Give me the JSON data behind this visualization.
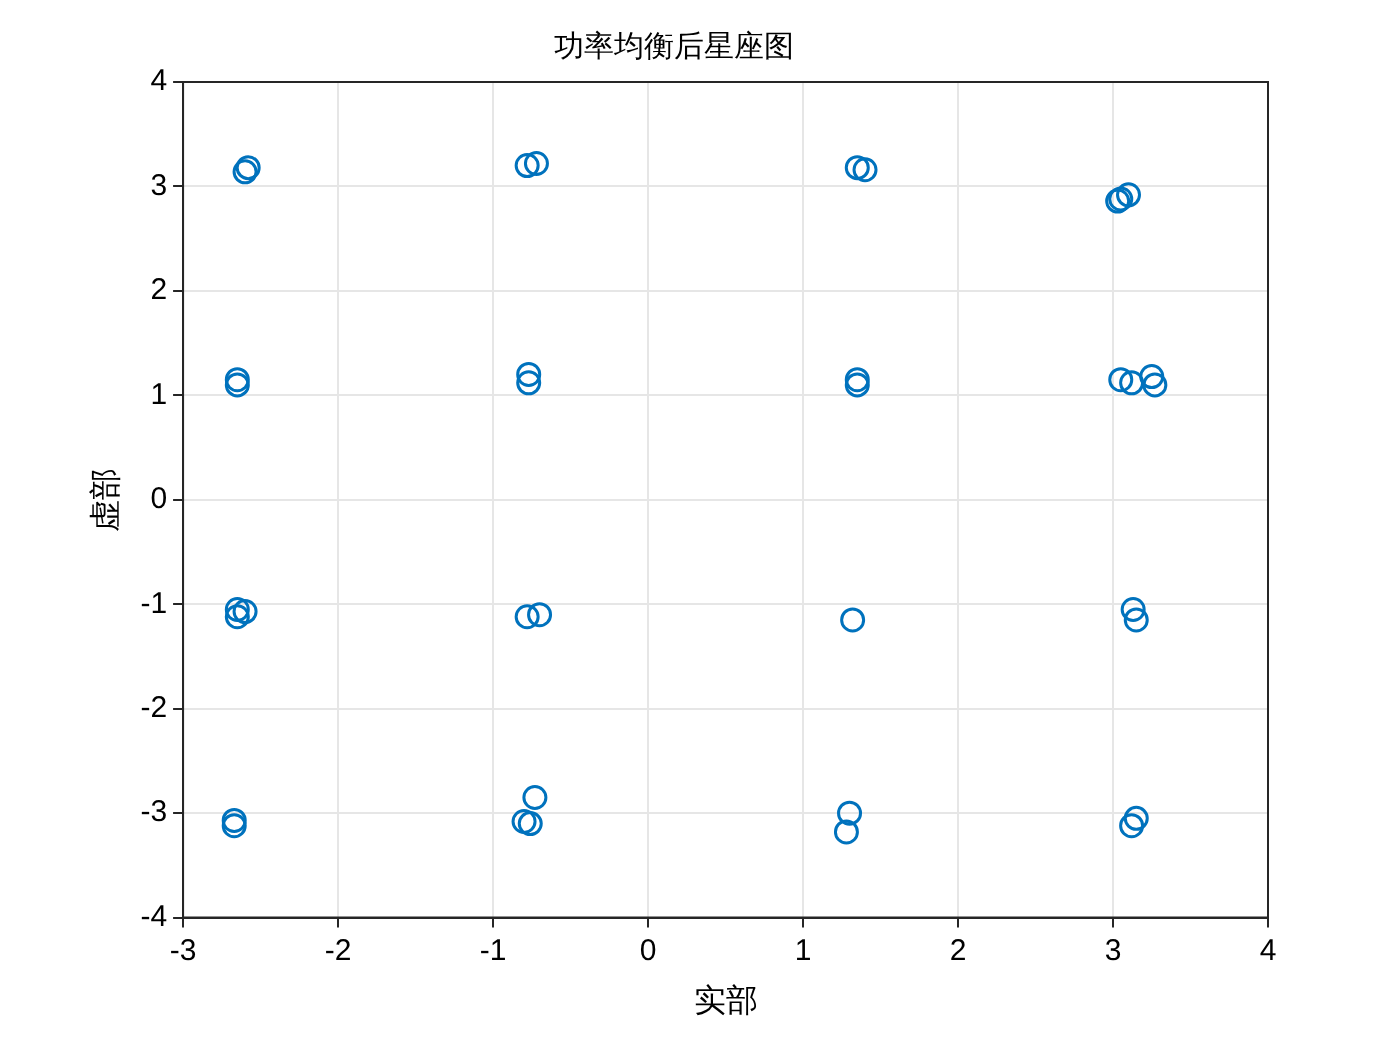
{
  "chart_data": {
    "type": "scatter",
    "title": "功率均衡后星座图",
    "xlabel": "实部",
    "ylabel": "虚部",
    "marker": "circle",
    "grid": true,
    "xlim": [
      -3,
      4
    ],
    "xticks": [
      -3,
      -2,
      -1,
      0,
      1,
      2,
      3,
      4
    ],
    "ylim": [
      -4,
      4
    ],
    "yticks": [
      -4,
      -3,
      -2,
      -1,
      0,
      1,
      2,
      3,
      4
    ],
    "series": [
      {
        "color": "#0072bd",
        "x": [
          -2.58,
          -2.6,
          -0.78,
          -0.72,
          1.35,
          1.4,
          3.05,
          3.1,
          3.03,
          -2.65,
          -2.65,
          -0.77,
          -0.77,
          1.35,
          1.35,
          3.05,
          3.12,
          3.25,
          3.27,
          -2.65,
          -2.65,
          -2.6,
          -0.78,
          -0.7,
          1.32,
          3.13,
          3.15,
          -2.67,
          -2.67,
          -0.73,
          -0.8,
          -0.76,
          1.3,
          1.28,
          3.15,
          3.12
        ],
        "values": [
          3.18,
          3.14,
          3.2,
          3.22,
          3.18,
          3.16,
          2.88,
          2.92,
          2.86,
          1.15,
          1.1,
          1.2,
          1.12,
          1.15,
          1.1,
          1.15,
          1.12,
          1.18,
          1.1,
          -1.05,
          -1.12,
          -1.07,
          -1.12,
          -1.1,
          -1.15,
          -1.05,
          -1.15,
          -3.07,
          -3.12,
          -2.85,
          -3.08,
          -3.1,
          -3.0,
          -3.18,
          -3.05,
          -3.12
        ]
      }
    ]
  }
}
